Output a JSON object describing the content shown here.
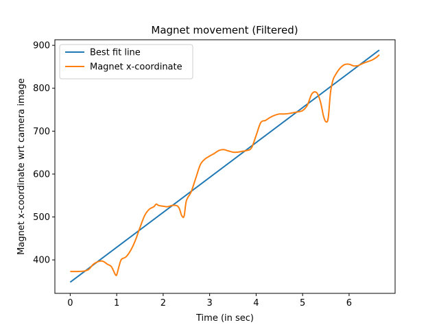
{
  "chart_data": {
    "type": "line",
    "title": "Magnet movement (Filtered)",
    "xlabel": "Time (in sec)",
    "ylabel": "Magnet x-coordinate wrt camera image",
    "xlim": [
      -0.33,
      6.99
    ],
    "ylim": [
      322,
      913
    ],
    "xticks": [
      0,
      1,
      2,
      3,
      4,
      5,
      6
    ],
    "yticks": [
      400,
      500,
      600,
      700,
      800,
      900
    ],
    "grid": false,
    "legend_position": "top-left",
    "series": [
      {
        "name": "Best fit line",
        "color": "#1f77b4",
        "x": [
          0,
          6.65
        ],
        "y": [
          348,
          889
        ]
      },
      {
        "name": "Magnet x-coordinate",
        "color": "#ff7f0e",
        "x": [
          0,
          0.15,
          0.3,
          0.4,
          0.5,
          0.6,
          0.7,
          0.8,
          0.88,
          0.93,
          0.97,
          1.0,
          1.05,
          1.1,
          1.2,
          1.3,
          1.4,
          1.5,
          1.6,
          1.7,
          1.8,
          1.85,
          1.9,
          2.0,
          2.1,
          2.2,
          2.3,
          2.35,
          2.4,
          2.45,
          2.5,
          2.6,
          2.7,
          2.8,
          2.9,
          3.0,
          3.1,
          3.2,
          3.3,
          3.4,
          3.5,
          3.6,
          3.7,
          3.8,
          3.9,
          4.0,
          4.1,
          4.2,
          4.3,
          4.4,
          4.5,
          4.6,
          4.7,
          4.8,
          4.9,
          5.0,
          5.1,
          5.2,
          5.3,
          5.38,
          5.45,
          5.5,
          5.55,
          5.6,
          5.65,
          5.7,
          5.8,
          5.9,
          6.0,
          6.1,
          6.2,
          6.3,
          6.4,
          6.5,
          6.6,
          6.65
        ],
        "y": [
          373,
          373,
          374,
          378,
          390,
          396,
          397,
          390,
          385,
          375,
          366,
          365,
          385,
          401,
          407,
          422,
          445,
          475,
          503,
          518,
          524,
          530,
          527,
          525,
          524,
          527,
          526,
          519,
          503,
          502,
          538,
          558,
          590,
          622,
          635,
          642,
          648,
          655,
          657,
          654,
          651,
          651,
          653,
          655,
          661,
          690,
          720,
          725,
          732,
          737,
          740,
          740,
          741,
          743,
          745,
          748,
          760,
          787,
          790,
          770,
          735,
          722,
          730,
          790,
          818,
          830,
          846,
          855,
          856,
          852,
          853,
          858,
          862,
          866,
          873,
          878
        ]
      }
    ]
  }
}
